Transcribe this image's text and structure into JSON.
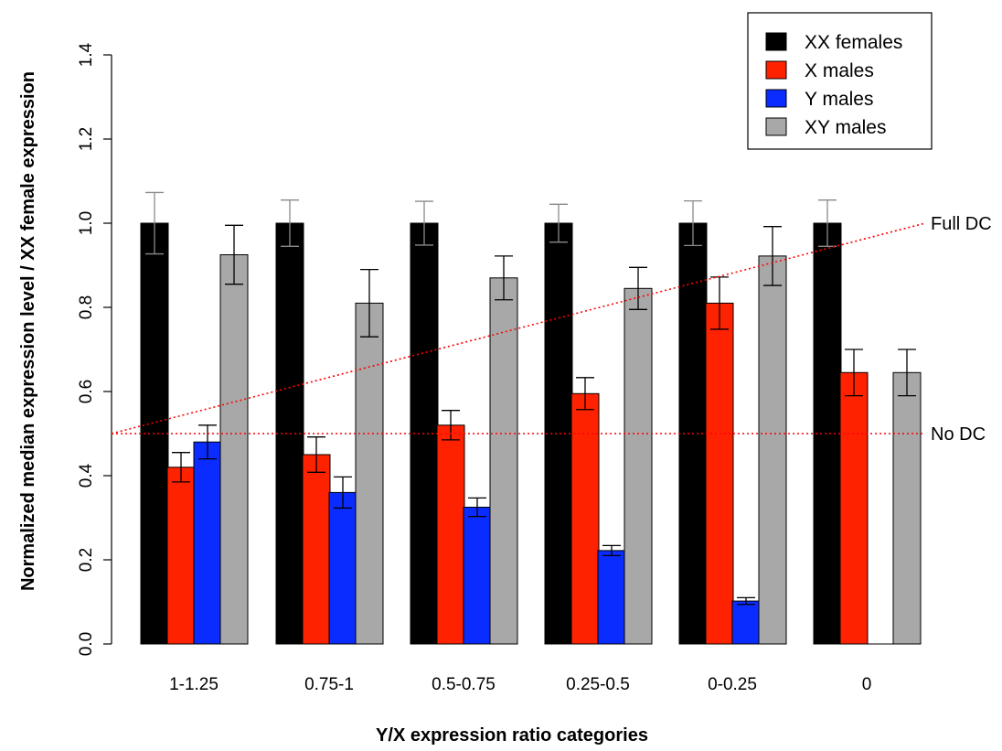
{
  "chart_data": {
    "type": "bar",
    "title": "",
    "xlabel": "Y/X expression ratio categories",
    "ylabel": "Normalized median expression level / XX female expression",
    "ylim": [
      0,
      1.4
    ],
    "yticks": [
      "0.0",
      "0.2",
      "0.4",
      "0.6",
      "0.8",
      "1.0",
      "1.2",
      "1.4"
    ],
    "categories": [
      "1-1.25",
      "0.75-1",
      "0.5-0.75",
      "0.25-0.5",
      "0-0.25",
      "0"
    ],
    "series": [
      {
        "name": "XX females",
        "color": "#000000",
        "values": [
          1.0,
          1.0,
          1.0,
          1.0,
          1.0,
          1.0
        ],
        "errors": [
          0.073,
          0.055,
          0.052,
          0.045,
          0.053,
          0.055
        ]
      },
      {
        "name": "X males",
        "color": "#ff2200",
        "values": [
          0.42,
          0.45,
          0.52,
          0.595,
          0.81,
          0.645
        ],
        "errors": [
          0.035,
          0.042,
          0.035,
          0.038,
          0.062,
          0.055
        ]
      },
      {
        "name": "Y males",
        "color": "#0a2cff",
        "values": [
          0.48,
          0.36,
          0.325,
          0.222,
          0.102,
          null
        ],
        "errors": [
          0.04,
          0.037,
          0.022,
          0.012,
          0.008,
          null
        ]
      },
      {
        "name": "XY males",
        "color": "#a8a8a8",
        "values": [
          0.925,
          0.81,
          0.87,
          0.845,
          0.922,
          0.645
        ],
        "errors": [
          0.07,
          0.08,
          0.052,
          0.05,
          0.07,
          0.055
        ]
      }
    ],
    "reference_lines": [
      {
        "label": "Full DC",
        "type": "dotted",
        "color": "#ff0000",
        "from": 0.5,
        "to": 1.0
      },
      {
        "label": "No DC",
        "type": "dotted",
        "color": "#ff0000",
        "from": 0.5,
        "to": 0.5
      }
    ],
    "legend_position": "top-right",
    "grid": false
  }
}
